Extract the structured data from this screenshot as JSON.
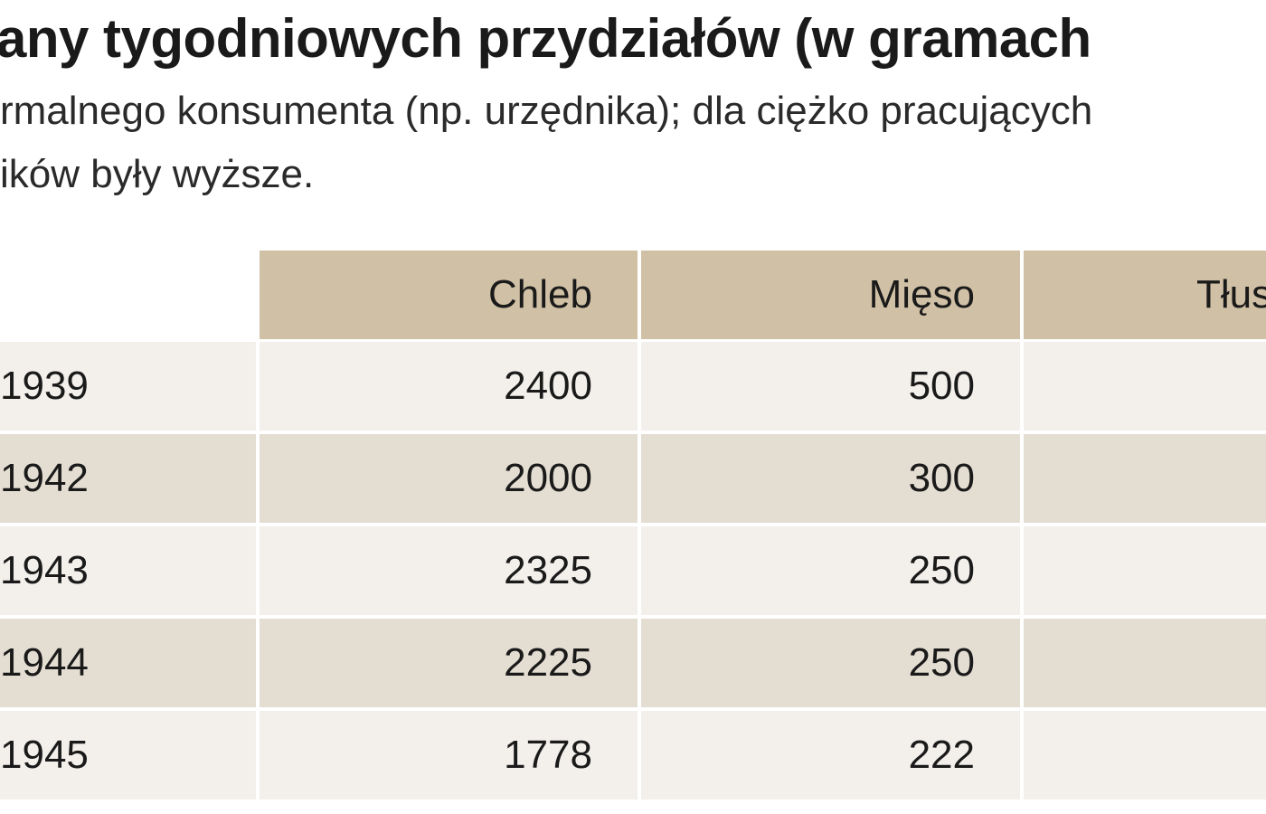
{
  "header": {
    "title": "any tygodniowych przydziałów (w gramach",
    "subtitle": [
      "rmalnego konsumenta (np. urzędnika); dla ciężko pracujących",
      "ików były wyższe."
    ]
  },
  "table": {
    "columns": [
      "Chleb",
      "Mięso",
      "Tłus"
    ],
    "rows": [
      [
        "1939",
        "2400",
        "500"
      ],
      [
        "1942",
        "2000",
        "300"
      ],
      [
        "1943",
        "2325",
        "250"
      ],
      [
        "1944",
        "2225",
        "250"
      ],
      [
        "1945",
        "1778",
        "222"
      ]
    ]
  }
}
